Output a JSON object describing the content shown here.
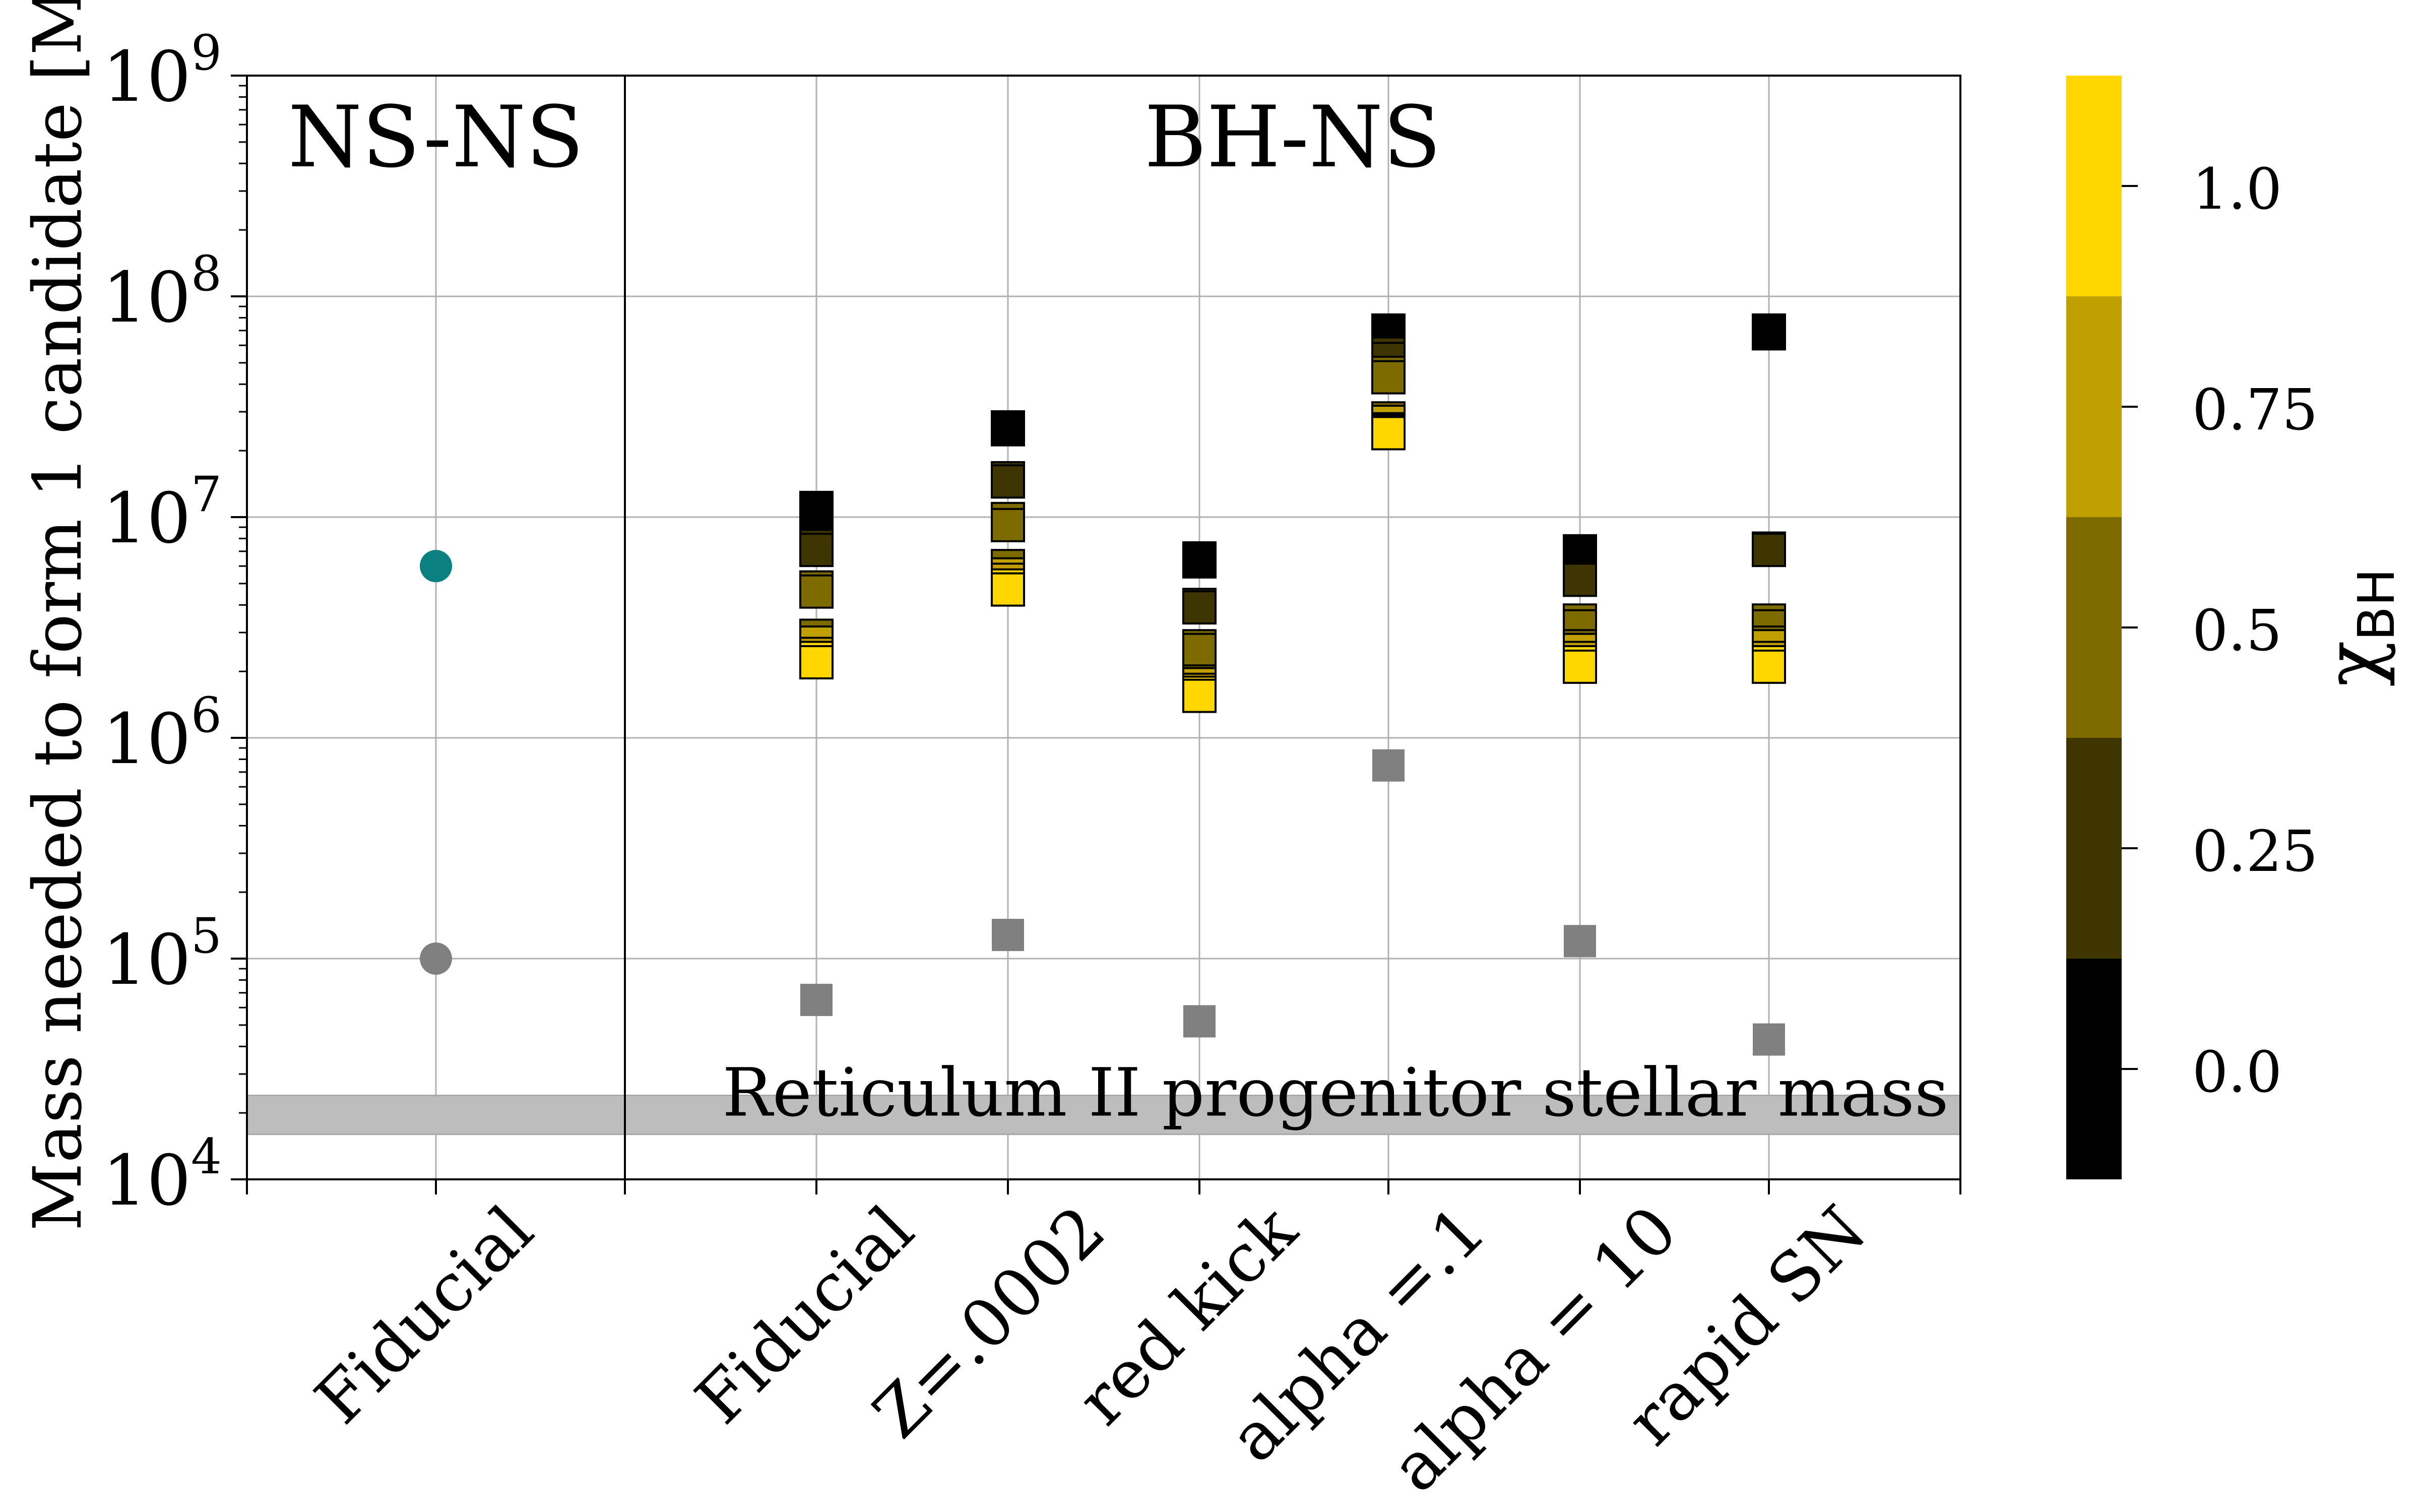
{
  "chart_data": {
    "type": "scatter",
    "y_scale": "log",
    "ylim": [
      10000,
      1000000000
    ],
    "ylabel": "Mass needed to form 1 candidate",
    "ylabel_unit": "[M",
    "ylabel_unit_sub": "⊙",
    "ylabel_unit_close": "]",
    "y_ticks": [
      {
        "value": 10000,
        "base": "10",
        "exp": "4"
      },
      {
        "value": 100000,
        "base": "10",
        "exp": "5"
      },
      {
        "value": 1000000,
        "base": "10",
        "exp": "6"
      },
      {
        "value": 10000000,
        "base": "10",
        "exp": "7"
      },
      {
        "value": 100000000,
        "base": "10",
        "exp": "8"
      },
      {
        "value": 1000000000,
        "base": "10",
        "exp": "9"
      }
    ],
    "grid": true,
    "panels": [
      {
        "title": "NS-NS",
        "categories": [
          "Fiducial"
        ]
      },
      {
        "title": "BH-NS",
        "categories": [
          "Fiducial",
          "Z=.0002",
          "red kick",
          "alpha =.1",
          "alpha = 10",
          "rapid SN"
        ]
      }
    ],
    "band": {
      "label": "Reticulum II progenitor stellar mass",
      "ymin": 16000,
      "ymax": 24000,
      "color": "#bdbdbd"
    },
    "nsns_points": [
      {
        "category": "Fiducial",
        "y": 6000000,
        "color": "#0b8080"
      },
      {
        "category": "Fiducial",
        "y": 100000,
        "color": "#808080"
      }
    ],
    "bhns_gray": [
      {
        "category": "Fiducial",
        "y": 65000
      },
      {
        "category": "Z=.0002",
        "y": 128000
      },
      {
        "category": "red kick",
        "y": 52000
      },
      {
        "category": "alpha =.1",
        "y": 750000
      },
      {
        "category": "alpha = 10",
        "y": 120000
      },
      {
        "category": "rapid SN",
        "y": 43000
      }
    ],
    "gray_color": "#808080",
    "bhns_spin_series": [
      {
        "chi": 0.0,
        "values": [
          11000000,
          25500000,
          6500000,
          70000000,
          7000000,
          70000000
        ]
      },
      {
        "chi": 0.1,
        "values": [
          10300000,
          25000000,
          6300000,
          68000000,
          6800000,
          68000000
        ]
      },
      {
        "chi": 0.2,
        "values": [
          7400000,
          15000000,
          4000000,
          55000000,
          5300000,
          7200000
        ]
      },
      {
        "chi": 0.3,
        "values": [
          7100000,
          14500000,
          3900000,
          52000000,
          5200000,
          7100000
        ]
      },
      {
        "chi": 0.4,
        "values": [
          4800000,
          9800000,
          2600000,
          45000000,
          3400000,
          3400000
        ]
      },
      {
        "chi": 0.5,
        "values": [
          4600000,
          9200000,
          2500000,
          43000000,
          3200000,
          3200000
        ]
      },
      {
        "chi": 0.6,
        "values": [
          2900000,
          6000000,
          1800000,
          28000000,
          2600000,
          2700000
        ]
      },
      {
        "chi": 0.7,
        "values": [
          2700000,
          5500000,
          1750000,
          27000000,
          2500000,
          2600000
        ]
      },
      {
        "chi": 0.8,
        "values": [
          2400000,
          5200000,
          1650000,
          25000000,
          2300000,
          2300000
        ]
      },
      {
        "chi": 0.9,
        "values": [
          2300000,
          4900000,
          1600000,
          24500000,
          2200000,
          2200000
        ]
      },
      {
        "chi": 1.0,
        "values": [
          2200000,
          4700000,
          1550000,
          24000000,
          2100000,
          2100000
        ]
      }
    ],
    "colorbar": {
      "label": "χ",
      "label_sub": "BH",
      "range": [
        -0.125,
        1.125
      ],
      "ticks": [
        "0.0",
        "0.25",
        "0.5",
        "0.75",
        "1.0"
      ],
      "tick_values": [
        0.0,
        0.25,
        0.5,
        0.75,
        1.0
      ],
      "levels": [
        {
          "from": -0.125,
          "to": 0.125,
          "color": "#000000"
        },
        {
          "from": 0.125,
          "to": 0.375,
          "color": "#3e3500"
        },
        {
          "from": 0.375,
          "to": 0.625,
          "color": "#7e6b00"
        },
        {
          "from": 0.625,
          "to": 0.875,
          "color": "#bfa000"
        },
        {
          "from": 0.875,
          "to": 1.125,
          "color": "#ffd700"
        }
      ]
    }
  }
}
